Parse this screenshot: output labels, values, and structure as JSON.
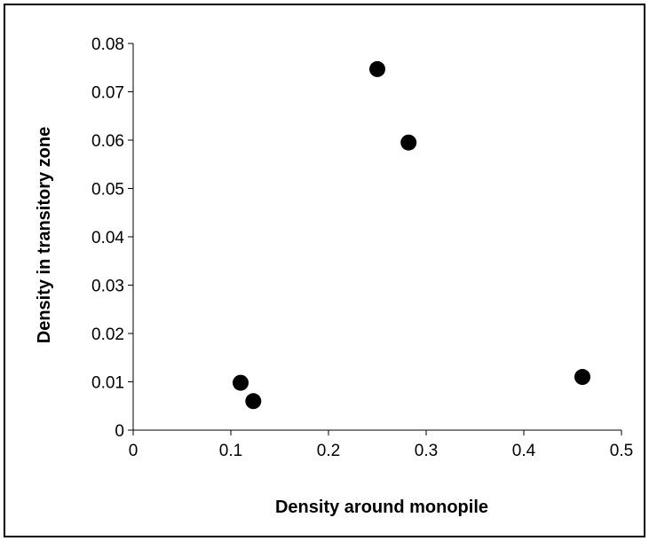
{
  "chart_data": {
    "type": "scatter",
    "title": "",
    "xlabel": "Density around monopile",
    "ylabel": "Density in transitory zone",
    "xlim": [
      0,
      0.5
    ],
    "ylim": [
      0,
      0.08
    ],
    "x_ticks": [
      "0",
      "0.1",
      "0.2",
      "0.3",
      "0.4",
      "0.5"
    ],
    "y_ticks": [
      "0",
      "0.01",
      "0.02",
      "0.03",
      "0.04",
      "0.05",
      "0.06",
      "0.07",
      "0.08"
    ],
    "grid": false,
    "legend": "none",
    "marker_color": "#000000",
    "points": [
      {
        "x": 0.11,
        "y": 0.0098
      },
      {
        "x": 0.123,
        "y": 0.006
      },
      {
        "x": 0.25,
        "y": 0.0747
      },
      {
        "x": 0.282,
        "y": 0.0595
      },
      {
        "x": 0.46,
        "y": 0.011
      }
    ]
  }
}
